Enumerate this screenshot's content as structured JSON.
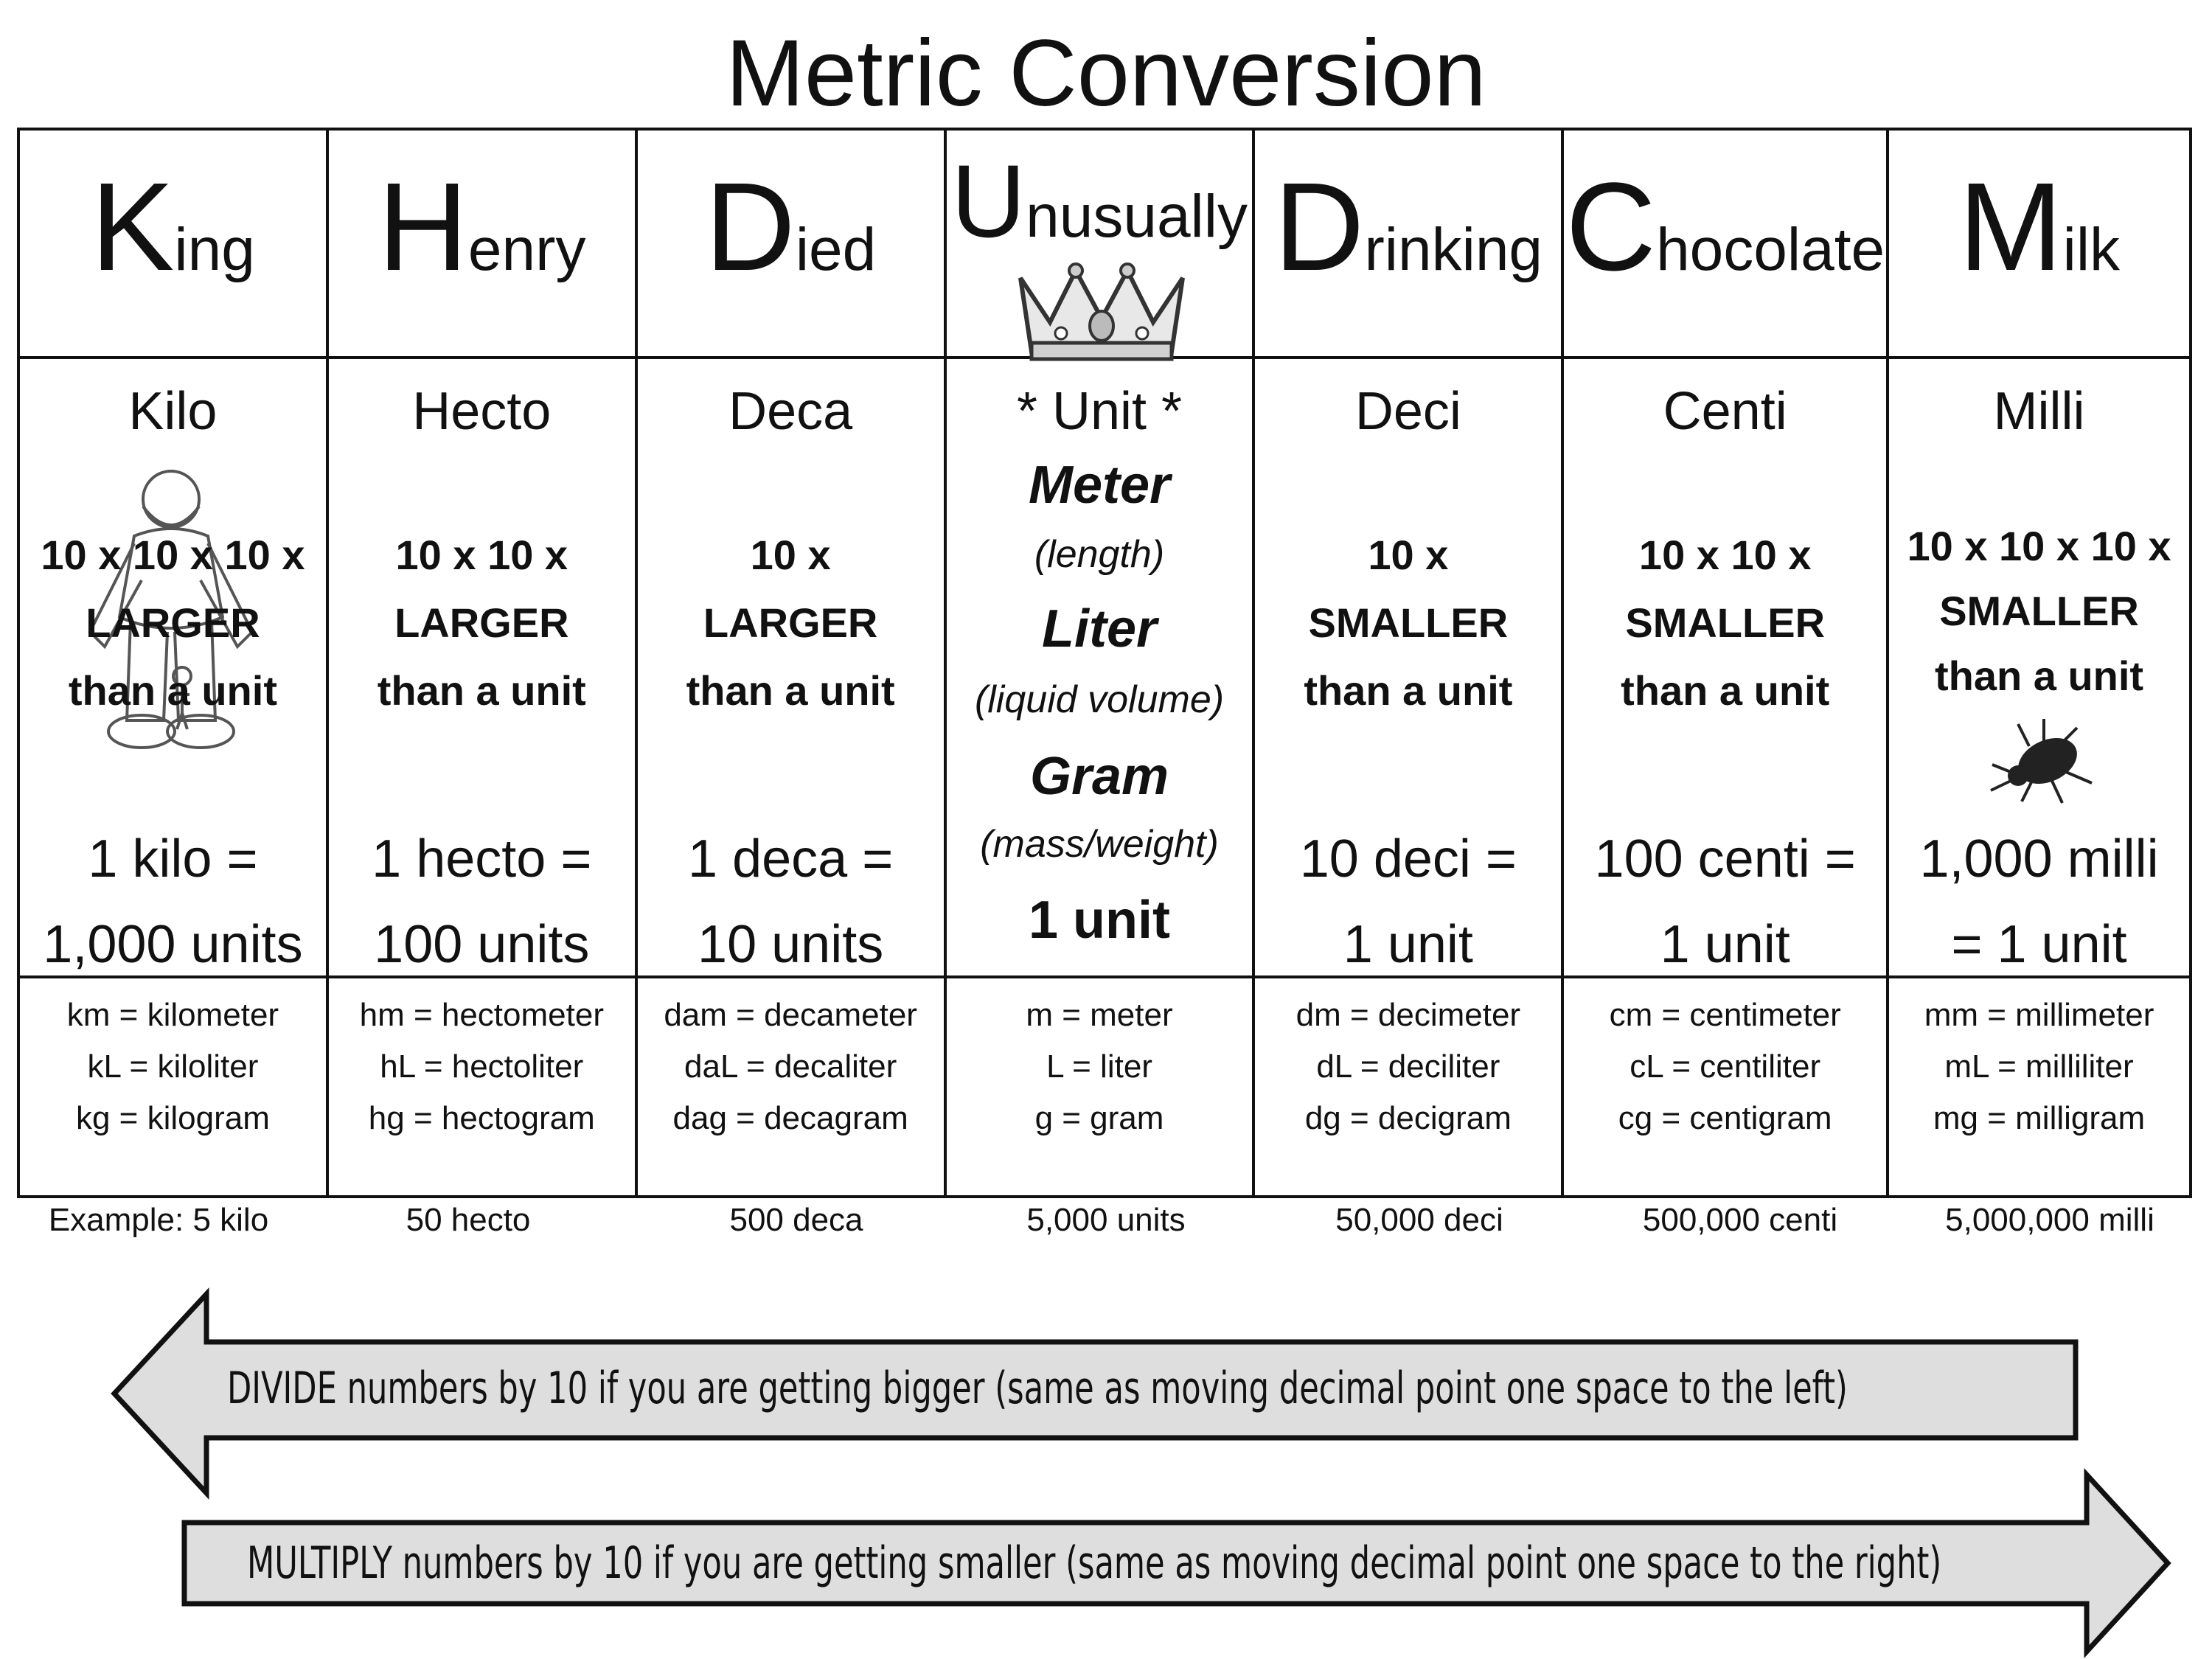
{
  "title": "Metric Conversion",
  "columns": [
    {
      "initial": "K",
      "word_rest": "ing",
      "prefix": "Kilo",
      "desc": [
        "10 x 10 x 10 x",
        "LARGER",
        "than a unit"
      ],
      "eq": [
        "1 kilo =",
        "1,000 units"
      ],
      "abbr": [
        "km = kilometer",
        "kL = kiloliter",
        "kg = kilogram"
      ],
      "example": "Example:  5 kilo"
    },
    {
      "initial": "H",
      "word_rest": "enry",
      "prefix": "Hecto",
      "desc": [
        "10 x 10 x",
        "LARGER",
        "than a unit"
      ],
      "eq": [
        "1 hecto =",
        "100 units"
      ],
      "abbr": [
        "hm = hectometer",
        "hL = hectoliter",
        "hg = hectogram"
      ],
      "example": "50 hecto"
    },
    {
      "initial": "D",
      "word_rest": "ied",
      "prefix": "Deca",
      "desc": [
        "10 x",
        "LARGER",
        "than a unit"
      ],
      "eq": [
        "1 deca =",
        "10 units"
      ],
      "abbr": [
        "dam = decameter",
        "daL = decaliter",
        "dag = decagram"
      ],
      "example": "500 deca"
    },
    {
      "initial": "U",
      "word_rest": "nusually",
      "prefix": "* Unit *",
      "units": [
        {
          "name": "Meter",
          "sub": "(length)"
        },
        {
          "name": "Liter",
          "sub": "(liquid volume)"
        },
        {
          "name": "Gram",
          "sub": "(mass/weight)"
        }
      ],
      "one_unit": "1 unit",
      "abbr": [
        "m = meter",
        "L = liter",
        "g = gram"
      ],
      "example": "5,000 units"
    },
    {
      "initial": "D",
      "word_rest": "rinking",
      "prefix": "Deci",
      "desc": [
        "10 x",
        "SMALLER",
        "than a unit"
      ],
      "eq": [
        "10 deci =",
        "1 unit"
      ],
      "abbr": [
        "dm = decimeter",
        "dL = deciliter",
        "dg = decigram"
      ],
      "example": "50,000 deci"
    },
    {
      "initial": "C",
      "word_rest": "hocolate",
      "prefix": "Centi",
      "desc": [
        "10 x 10 x",
        "SMALLER",
        "than a unit"
      ],
      "eq": [
        "100 centi =",
        "1 unit"
      ],
      "abbr": [
        "cm = centimeter",
        "cL = centiliter",
        "cg = centigram"
      ],
      "example": "500,000 centi"
    },
    {
      "initial": "M",
      "word_rest": "ilk",
      "prefix": "Milli",
      "desc": [
        "10 x 10 x 10 x",
        "SMALLER",
        "than a unit"
      ],
      "eq": [
        "1,000 milli",
        "= 1 unit"
      ],
      "abbr": [
        "mm = millimeter",
        "mL = milliliter",
        "mg = milligram"
      ],
      "example": "5,000,000 milli"
    }
  ],
  "arrows": {
    "left": "DIVIDE numbers by 10 if you are getting bigger (same as moving decimal point one space to the left)",
    "right": "MULTIPLY numbers by 10 if you are getting smaller (same as moving decimal point one space to the right)"
  },
  "illustrations": [
    "giant-icon",
    "crown-icon",
    "beetle-icon"
  ]
}
